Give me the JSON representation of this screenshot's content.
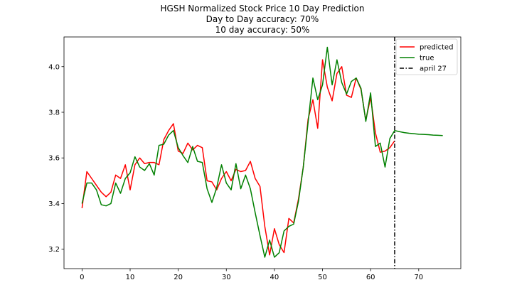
{
  "chart_data": {
    "type": "line",
    "title_lines": [
      "HGSH Normalized Stock Price 10 Day Prediction",
      "Day to Day accuracy: 70%",
      "10 day accuracy: 50%"
    ],
    "xlabel": "",
    "ylabel": "",
    "xlim": [
      -3.75,
      78.75
    ],
    "ylim": [
      3.115,
      4.13
    ],
    "xticks": [
      0,
      10,
      20,
      30,
      40,
      50,
      60,
      70
    ],
    "yticks": [
      3.2,
      3.4,
      3.6,
      3.8,
      4.0
    ],
    "ytick_labels": [
      "3.2",
      "3.4",
      "3.6",
      "3.8",
      "4.0"
    ],
    "grid": false,
    "legend_position": "top-right",
    "series": [
      {
        "name": "predicted",
        "color": "#ff0000",
        "x": [
          0,
          1,
          2,
          3,
          4,
          5,
          6,
          7,
          8,
          9,
          10,
          11,
          12,
          13,
          14,
          15,
          16,
          17,
          18,
          19,
          20,
          21,
          22,
          23,
          24,
          25,
          26,
          27,
          28,
          29,
          30,
          31,
          32,
          33,
          34,
          35,
          36,
          37,
          38,
          39,
          40,
          41,
          42,
          43,
          44,
          45,
          46,
          47,
          48,
          49,
          50,
          51,
          52,
          53,
          54,
          55,
          56,
          57,
          58,
          59,
          60,
          61,
          62,
          63,
          64,
          65
        ],
        "values": [
          3.38,
          3.54,
          3.51,
          3.48,
          3.45,
          3.43,
          3.45,
          3.525,
          3.51,
          3.57,
          3.46,
          3.57,
          3.6,
          3.575,
          3.58,
          3.58,
          3.57,
          3.68,
          3.72,
          3.75,
          3.63,
          3.62,
          3.665,
          3.635,
          3.655,
          3.645,
          3.5,
          3.495,
          3.46,
          3.51,
          3.54,
          3.5,
          3.55,
          3.54,
          3.545,
          3.585,
          3.51,
          3.475,
          3.3,
          3.175,
          3.29,
          3.22,
          3.185,
          3.335,
          3.315,
          3.42,
          3.56,
          3.77,
          3.855,
          3.73,
          4.03,
          3.91,
          3.85,
          3.97,
          4.0,
          3.875,
          3.865,
          3.95,
          3.9,
          3.765,
          3.865,
          3.71,
          3.625,
          3.63,
          3.645,
          3.675
        ]
      },
      {
        "name": "true",
        "color": "#008000",
        "x": [
          0,
          1,
          2,
          3,
          4,
          5,
          6,
          7,
          8,
          9,
          10,
          11,
          12,
          13,
          14,
          15,
          16,
          17,
          18,
          19,
          20,
          21,
          22,
          23,
          24,
          25,
          26,
          27,
          28,
          29,
          30,
          31,
          32,
          33,
          34,
          35,
          36,
          37,
          38,
          39,
          40,
          41,
          42,
          43,
          44,
          45,
          46,
          47,
          48,
          49,
          50,
          51,
          52,
          53,
          54,
          55,
          56,
          57,
          58,
          59,
          60,
          61,
          62,
          63,
          64,
          65,
          66,
          67,
          68,
          69,
          70,
          71,
          72,
          73,
          74,
          75
        ],
        "values": [
          3.4,
          3.49,
          3.49,
          3.46,
          3.395,
          3.39,
          3.4,
          3.49,
          3.445,
          3.51,
          3.535,
          3.605,
          3.56,
          3.545,
          3.575,
          3.525,
          3.655,
          3.66,
          3.7,
          3.72,
          3.645,
          3.61,
          3.58,
          3.65,
          3.585,
          3.58,
          3.465,
          3.405,
          3.47,
          3.57,
          3.49,
          3.46,
          3.575,
          3.465,
          3.525,
          3.465,
          3.36,
          3.26,
          3.165,
          3.24,
          3.165,
          3.185,
          3.28,
          3.3,
          3.31,
          3.41,
          3.56,
          3.755,
          3.95,
          3.855,
          3.92,
          4.085,
          3.92,
          4.03,
          3.93,
          3.88,
          3.935,
          3.95,
          3.905,
          3.76,
          3.885,
          3.65,
          3.665,
          3.56,
          3.685,
          3.72,
          3.715,
          3.711,
          3.708,
          3.706,
          3.704,
          3.703,
          3.702,
          3.7,
          3.699,
          3.698
        ]
      }
    ],
    "vline": {
      "name": "april 27",
      "x": 65,
      "color": "#000000",
      "style": "dashdot"
    }
  }
}
